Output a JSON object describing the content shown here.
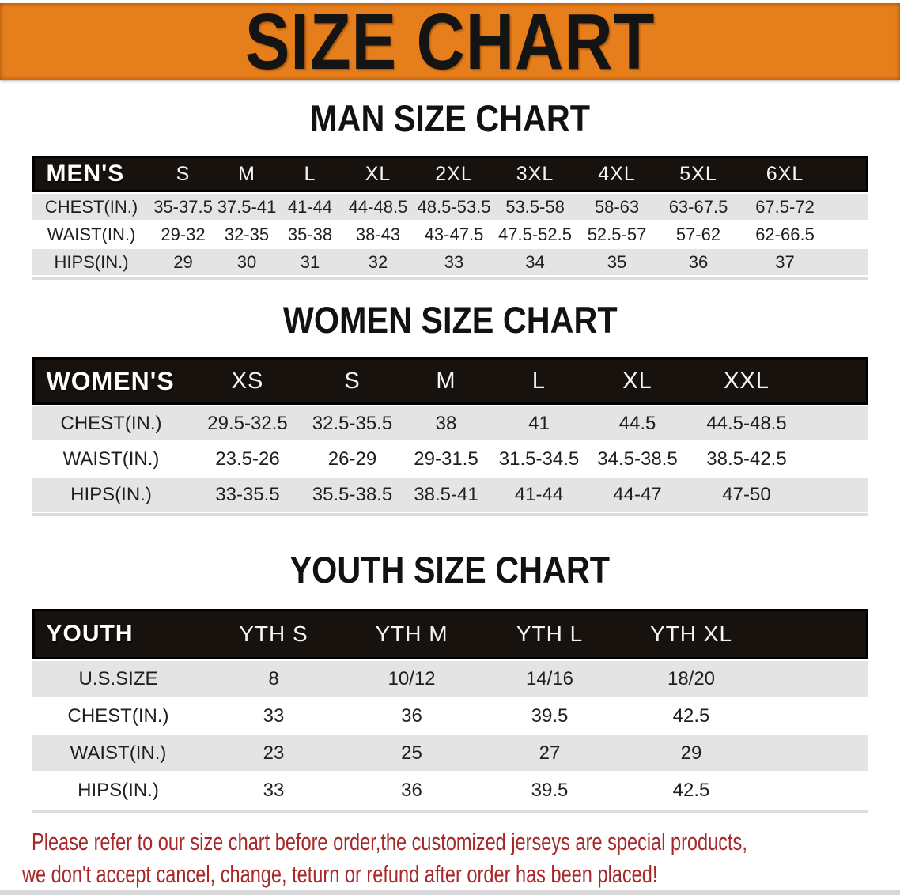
{
  "banner": {
    "title": "SIZE CHART"
  },
  "colors": {
    "banner_bg": "#E67E1B",
    "header_bar": "#17120E",
    "row_shade": "#E4E4E4",
    "note_text": "#A8282A"
  },
  "sections": [
    {
      "id": "men",
      "heading": "MAN SIZE CHART",
      "table": {
        "corner": "MEN'S",
        "columns": [
          "S",
          "M",
          "L",
          "XL",
          "2XL",
          "3XL",
          "4XL",
          "5XL",
          "6XL"
        ],
        "rows": [
          {
            "label": "CHEST(IN.)",
            "values": [
              "35-37.5",
              "37.5-41",
              "41-44",
              "44-48.5",
              "48.5-53.5",
              "53.5-58",
              "58-63",
              "63-67.5",
              "67.5-72"
            ]
          },
          {
            "label": "WAIST(IN.)",
            "values": [
              "29-32",
              "32-35",
              "35-38",
              "38-43",
              "43-47.5",
              "47.5-52.5",
              "52.5-57",
              "57-62",
              "62-66.5"
            ]
          },
          {
            "label": "HIPS(IN.)",
            "values": [
              "29",
              "30",
              "31",
              "32",
              "33",
              "34",
              "35",
              "36",
              "37"
            ]
          }
        ]
      }
    },
    {
      "id": "women",
      "heading": "WOMEN SIZE CHART",
      "table": {
        "corner": "WOMEN'S",
        "columns": [
          "XS",
          "S",
          "M",
          "L",
          "XL",
          "XXL"
        ],
        "rows": [
          {
            "label": "CHEST(IN.)",
            "values": [
              "29.5-32.5",
              "32.5-35.5",
              "38",
              "41",
              "44.5",
              "44.5-48.5"
            ]
          },
          {
            "label": "WAIST(IN.)",
            "values": [
              "23.5-26",
              "26-29",
              "29-31.5",
              "31.5-34.5",
              "34.5-38.5",
              "38.5-42.5"
            ]
          },
          {
            "label": "HIPS(IN.)",
            "values": [
              "33-35.5",
              "35.5-38.5",
              "38.5-41",
              "41-44",
              "44-47",
              "47-50"
            ]
          }
        ]
      }
    },
    {
      "id": "youth",
      "heading": "YOUTH SIZE CHART",
      "table": {
        "corner": "YOUTH",
        "columns": [
          "YTH S",
          "YTH M",
          "YTH L",
          "YTH XL"
        ],
        "rows": [
          {
            "label": "U.S.SIZE",
            "values": [
              "8",
              "10/12",
              "14/16",
              "18/20"
            ]
          },
          {
            "label": "CHEST(IN.)",
            "values": [
              "33",
              "36",
              "39.5",
              "42.5"
            ]
          },
          {
            "label": "WAIST(IN.)",
            "values": [
              "23",
              "25",
              "27",
              "29"
            ]
          },
          {
            "label": "HIPS(IN.)",
            "values": [
              "33",
              "36",
              "39.5",
              "42.5"
            ]
          }
        ]
      }
    }
  ],
  "note": {
    "line1": "Please refer to our size chart before order,the customized jerseys are special products,",
    "line2": "we don't accept cancel, change, teturn or refund after order has been placed!"
  }
}
